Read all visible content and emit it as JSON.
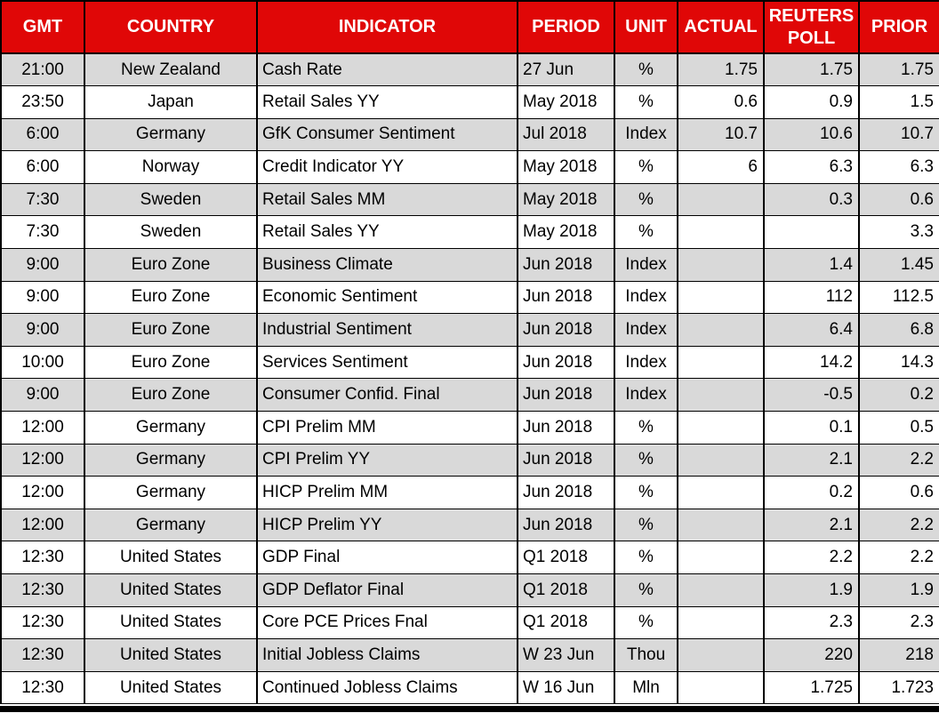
{
  "colors": {
    "header_bg": "#e00707",
    "header_text": "#ffffff",
    "row_alt_bg": "#d9d9d9",
    "row_bg": "#ffffff",
    "border": "#000000",
    "cell_text": "#000000"
  },
  "chart_data": {
    "type": "table",
    "title": "",
    "legend": "none",
    "grid": "on",
    "columns": [
      {
        "key": "gmt",
        "label": "GMT",
        "align": "center"
      },
      {
        "key": "country",
        "label": "COUNTRY",
        "align": "center"
      },
      {
        "key": "indicator",
        "label": "INDICATOR",
        "align": "left"
      },
      {
        "key": "period",
        "label": "PERIOD",
        "align": "left"
      },
      {
        "key": "unit",
        "label": "UNIT",
        "align": "center"
      },
      {
        "key": "actual",
        "label": "ACTUAL",
        "align": "right"
      },
      {
        "key": "reuters_poll",
        "label": "REUTERS POLL",
        "align": "right"
      },
      {
        "key": "prior",
        "label": "PRIOR",
        "align": "right"
      }
    ],
    "rows": [
      [
        "21:00",
        "New Zealand",
        "Cash Rate",
        "27 Jun",
        "%",
        "1.75",
        "1.75",
        "1.75"
      ],
      [
        "23:50",
        "Japan",
        "Retail Sales YY",
        "May 2018",
        "%",
        "0.6",
        "0.9",
        "1.5"
      ],
      [
        "6:00",
        "Germany",
        "GfK Consumer Sentiment",
        "Jul 2018",
        "Index",
        "10.7",
        "10.6",
        "10.7"
      ],
      [
        "6:00",
        "Norway",
        "Credit Indicator YY",
        "May 2018",
        "%",
        "6",
        "6.3",
        "6.3"
      ],
      [
        "7:30",
        "Sweden",
        "Retail Sales MM",
        "May 2018",
        "%",
        "",
        "0.3",
        "0.6"
      ],
      [
        "7:30",
        "Sweden",
        "Retail Sales YY",
        "May 2018",
        "%",
        "",
        "",
        "3.3"
      ],
      [
        "9:00",
        "Euro Zone",
        "Business Climate",
        "Jun 2018",
        "Index",
        "",
        "1.4",
        "1.45"
      ],
      [
        "9:00",
        "Euro Zone",
        "Economic Sentiment",
        "Jun 2018",
        "Index",
        "",
        "112",
        "112.5"
      ],
      [
        "9:00",
        "Euro Zone",
        "Industrial Sentiment",
        "Jun 2018",
        "Index",
        "",
        "6.4",
        "6.8"
      ],
      [
        "10:00",
        "Euro Zone",
        "Services Sentiment",
        "Jun 2018",
        "Index",
        "",
        "14.2",
        "14.3"
      ],
      [
        "9:00",
        "Euro Zone",
        "Consumer Confid. Final",
        "Jun 2018",
        "Index",
        "",
        "-0.5",
        "0.2"
      ],
      [
        "12:00",
        "Germany",
        "CPI Prelim MM",
        "Jun 2018",
        "%",
        "",
        "0.1",
        "0.5"
      ],
      [
        "12:00",
        "Germany",
        "CPI Prelim YY",
        "Jun 2018",
        "%",
        "",
        "2.1",
        "2.2"
      ],
      [
        "12:00",
        "Germany",
        "HICP Prelim MM",
        "Jun 2018",
        "%",
        "",
        "0.2",
        "0.6"
      ],
      [
        "12:00",
        "Germany",
        "HICP Prelim YY",
        "Jun 2018",
        "%",
        "",
        "2.1",
        "2.2"
      ],
      [
        "12:30",
        "United States",
        "GDP Final",
        "Q1 2018",
        "%",
        "",
        "2.2",
        "2.2"
      ],
      [
        "12:30",
        "United States",
        "GDP Deflator Final",
        "Q1 2018",
        "%",
        "",
        "1.9",
        "1.9"
      ],
      [
        "12:30",
        "United States",
        "Core PCE Prices Fnal",
        "Q1 2018",
        "%",
        "",
        "2.3",
        "2.3"
      ],
      [
        "12:30",
        "United States",
        "Initial Jobless Claims",
        "W 23 Jun",
        "Thou",
        "",
        "220",
        "218"
      ],
      [
        "12:30",
        "United States",
        "Continued Jobless Claims",
        "W 16 Jun",
        "Mln",
        "",
        "1.725",
        "1.723"
      ]
    ]
  }
}
